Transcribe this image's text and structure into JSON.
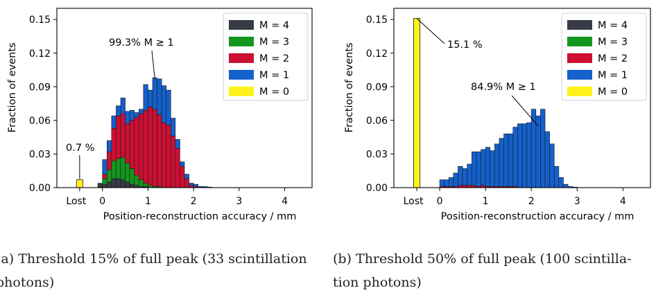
{
  "colors": {
    "m4": "#363b45",
    "m3": "#14961f",
    "m2": "#cc0f33",
    "m1": "#1460cc",
    "m0": "#fff21c",
    "edge": "#1a1a1a"
  },
  "captions": {
    "a_line1": "(a) Threshold 15% of full peak (33 scintillation",
    "a_line2": "photons)",
    "b_line1": "(b)  Threshold  50%  of  full  peak  (100  scintilla-",
    "b_line2": "tion photons)"
  },
  "chart_data": [
    {
      "type": "bar",
      "subtype": "stacked-histogram",
      "title": "",
      "xlabel": "Position-reconstruction accuracy / mm",
      "ylabel": "Fraction of events",
      "xlim": [
        -1.0,
        4.6
      ],
      "ylim": [
        0,
        0.16
      ],
      "xticks": [
        "Lost",
        "0",
        "1",
        "2",
        "3",
        "4"
      ],
      "yticks": [
        "0.00",
        "0.03",
        "0.06",
        "0.09",
        "0.12",
        "0.15"
      ],
      "bin_width": 0.1,
      "bin_start": -0.1,
      "legend_position": "top-right",
      "legend": [
        "M = 4",
        "M = 3",
        "M = 2",
        "M = 1",
        "M = 0"
      ],
      "lost": {
        "label": "Lost",
        "value": 0.007,
        "series": "M = 0"
      },
      "annotations": [
        {
          "text": "0.7 %",
          "target": "lost"
        },
        {
          "text": "99.3% M ≥ 1",
          "target_x": 1.15,
          "target_y": 0.097
        }
      ],
      "series": [
        {
          "name": "M = 4",
          "values": [
            0.001,
            0.003,
            0.005,
            0.008,
            0.008,
            0.007,
            0.005,
            0.003,
            0.002,
            0.001,
            0.001,
            0,
            0,
            0,
            0,
            0,
            0,
            0,
            0,
            0,
            0,
            0,
            0,
            0,
            0,
            0,
            0,
            0,
            0,
            0,
            0,
            0,
            0,
            0,
            0,
            0,
            0,
            0,
            0,
            0,
            0,
            0,
            0,
            0,
            0,
            0
          ]
        },
        {
          "name": "M = 3",
          "values": [
            0.001,
            0.005,
            0.011,
            0.016,
            0.018,
            0.02,
            0.017,
            0.014,
            0.009,
            0.006,
            0.003,
            0.002,
            0.001,
            0.001,
            0,
            0,
            0,
            0,
            0,
            0,
            0,
            0,
            0,
            0,
            0,
            0,
            0,
            0,
            0,
            0,
            0,
            0,
            0,
            0,
            0,
            0,
            0,
            0,
            0,
            0,
            0,
            0,
            0,
            0,
            0,
            0
          ]
        },
        {
          "name": "M = 2",
          "values": [
            0.001,
            0.004,
            0.016,
            0.029,
            0.038,
            0.039,
            0.035,
            0.043,
            0.052,
            0.059,
            0.065,
            0.07,
            0.069,
            0.064,
            0.058,
            0.056,
            0.046,
            0.035,
            0.019,
            0.008,
            0.002,
            0.001,
            0,
            0,
            0,
            0,
            0,
            0,
            0,
            0,
            0,
            0,
            0,
            0,
            0,
            0,
            0,
            0,
            0,
            0,
            0,
            0,
            0,
            0,
            0,
            0
          ]
        },
        {
          "name": "M = 1",
          "values": [
            0.001,
            0.013,
            0.01,
            0.011,
            0.009,
            0.014,
            0.011,
            0.009,
            0.004,
            0.004,
            0.023,
            0.015,
            0.028,
            0.032,
            0.033,
            0.031,
            0.016,
            0.008,
            0.004,
            0.004,
            0.002,
            0.002,
            0.001,
            0.001,
            0.0005,
            0,
            0,
            0,
            0,
            0,
            0,
            0,
            0,
            0,
            0,
            0,
            0,
            0,
            0,
            0,
            0,
            0,
            0,
            0,
            0,
            0
          ]
        }
      ]
    },
    {
      "type": "bar",
      "subtype": "stacked-histogram",
      "title": "",
      "xlabel": "Position-reconstruction accuracy / mm",
      "ylabel": "Fraction of events",
      "xlim": [
        -1.0,
        4.6
      ],
      "ylim": [
        0,
        0.16
      ],
      "xticks": [
        "Lost",
        "0",
        "1",
        "2",
        "3",
        "4"
      ],
      "yticks": [
        "0.00",
        "0.03",
        "0.06",
        "0.09",
        "0.12",
        "0.15"
      ],
      "bin_width": 0.1,
      "bin_start": -0.1,
      "legend_position": "top-right",
      "legend": [
        "M = 4",
        "M = 3",
        "M = 2",
        "M = 1",
        "M = 0"
      ],
      "lost": {
        "label": "Lost",
        "value": 0.151,
        "series": "M = 0"
      },
      "annotations": [
        {
          "text": "15.1 %",
          "target": "lost"
        },
        {
          "text": "84.9% M ≥ 1",
          "target_x": 2.15,
          "target_y": 0.055
        }
      ],
      "series": [
        {
          "name": "M = 4",
          "values": [
            0,
            0,
            0,
            0,
            0,
            0,
            0,
            0,
            0,
            0,
            0,
            0,
            0,
            0,
            0,
            0,
            0,
            0,
            0,
            0,
            0,
            0,
            0,
            0,
            0,
            0,
            0,
            0,
            0,
            0,
            0,
            0,
            0,
            0,
            0,
            0,
            0,
            0,
            0,
            0,
            0,
            0,
            0,
            0,
            0,
            0
          ]
        },
        {
          "name": "M = 3",
          "values": [
            0,
            0,
            0,
            0,
            0,
            0,
            0,
            0,
            0,
            0,
            0,
            0,
            0,
            0,
            0,
            0,
            0,
            0,
            0,
            0,
            0,
            0,
            0,
            0,
            0,
            0,
            0,
            0,
            0,
            0,
            0,
            0,
            0,
            0,
            0,
            0,
            0,
            0,
            0,
            0,
            0,
            0,
            0,
            0,
            0,
            0
          ]
        },
        {
          "name": "M = 2",
          "values": [
            0,
            0.001,
            0.001,
            0.001,
            0.001,
            0.002,
            0.002,
            0.002,
            0.002,
            0.001,
            0.002,
            0.001,
            0.001,
            0.001,
            0.001,
            0.001,
            0.001,
            0.001,
            0,
            0,
            0,
            0,
            0,
            0,
            0,
            0,
            0,
            0,
            0,
            0,
            0,
            0,
            0,
            0,
            0,
            0,
            0,
            0,
            0,
            0,
            0,
            0,
            0,
            0,
            0,
            0
          ]
        },
        {
          "name": "M = 1",
          "values": [
            0,
            0.006,
            0.006,
            0.008,
            0.012,
            0.017,
            0.015,
            0.019,
            0.03,
            0.031,
            0.032,
            0.035,
            0.032,
            0.038,
            0.043,
            0.047,
            0.047,
            0.053,
            0.057,
            0.057,
            0.058,
            0.07,
            0.064,
            0.07,
            0.05,
            0.039,
            0.019,
            0.009,
            0.003,
            0.001,
            0.0005,
            0,
            0,
            0,
            0,
            0,
            0,
            0,
            0,
            0,
            0,
            0,
            0,
            0,
            0,
            0
          ]
        }
      ]
    }
  ]
}
